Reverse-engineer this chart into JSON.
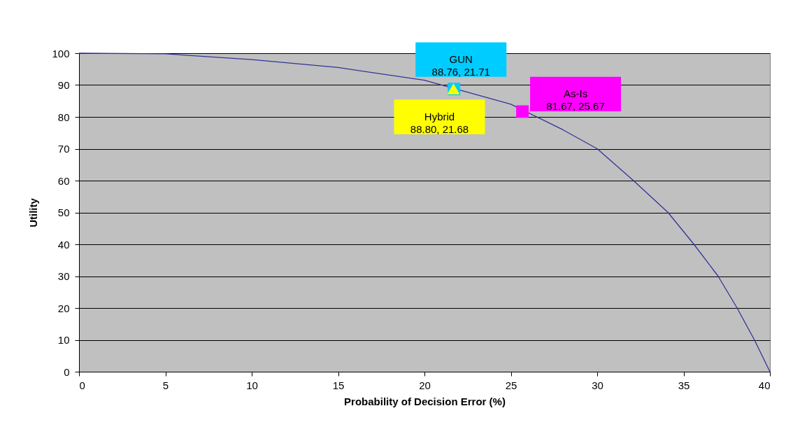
{
  "chart_data": {
    "type": "line",
    "xlabel": "Probability of Decision Error (%)",
    "ylabel": "Utility",
    "xlim": [
      0,
      40
    ],
    "xticks": [
      0,
      5,
      10,
      15,
      20,
      25,
      30,
      35,
      40
    ],
    "ylim": [
      0,
      100
    ],
    "yticks": [
      0,
      10,
      20,
      30,
      40,
      50,
      60,
      70,
      80,
      90,
      100
    ],
    "grid": "y",
    "series": [
      {
        "color": "#333399",
        "marker": "none",
        "x": [
          0,
          5,
          10,
          15,
          20,
          25,
          28,
          30,
          32.1,
          34.1,
          35.6,
          37,
          38.1,
          39.1,
          40
        ],
        "values": [
          100,
          99.8,
          98,
          95.5,
          91.5,
          84,
          76,
          70,
          60,
          50,
          40,
          30,
          20,
          10,
          0
        ]
      },
      {
        "type": "scatter",
        "name": "GUN",
        "color": "#00ccff",
        "marker": "square",
        "x": [
          21.71
        ],
        "values": [
          88.76
        ],
        "value_labels": [
          "88.76, 21.71"
        ]
      },
      {
        "type": "scatter",
        "name": "Hybrid",
        "color": "#ffff00",
        "marker": "triangle",
        "x": [
          21.68
        ],
        "values": [
          88.8
        ],
        "value_labels": [
          "88.80, 21.68"
        ]
      },
      {
        "type": "scatter",
        "name": "As-Is",
        "color": "#ff00ff",
        "marker": "square",
        "x": [
          25.67
        ],
        "values": [
          81.67
        ],
        "value_labels": [
          "81.67, 25.67"
        ]
      }
    ]
  }
}
